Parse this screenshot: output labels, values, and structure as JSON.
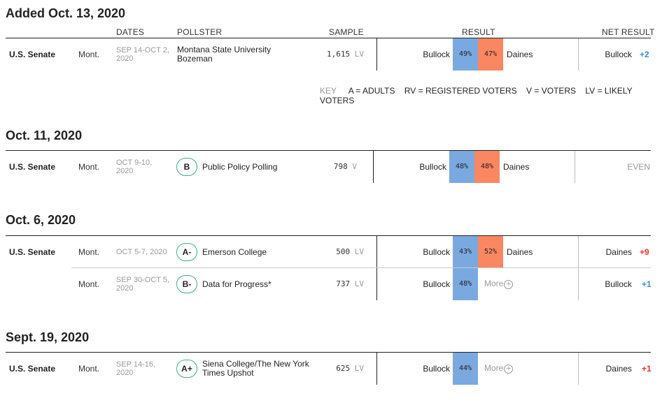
{
  "headers": {
    "dates": "DATES",
    "pollster": "POLLSTER",
    "sample": "SAMPLE",
    "result": "RESULT",
    "net_result": "NET RESULT"
  },
  "key": {
    "label": "KEY",
    "items": [
      "A = ADULTS",
      "RV = REGISTERED VOTERS",
      "V = VOTERS",
      "LV = LIKELY VOTERS"
    ]
  },
  "sections": [
    {
      "title": "Added Oct. 13, 2020",
      "rows": [
        {
          "office": "U.S. Senate",
          "state": "Mont.",
          "dates_line1": "SEP 14-OCT 2,",
          "dates_line2": "2020",
          "grade": "",
          "pollster_line1": "Montana State University",
          "pollster_line2": "Bozeman",
          "sample": "1,615",
          "sample_unit": "LV",
          "cand1": "Bullock",
          "pct1": "49%",
          "pct2": "47%",
          "cand2": "Daines",
          "net_name": "Bullock",
          "net_val": "+2"
        }
      ]
    },
    {
      "title": "Oct. 11, 2020",
      "rows": [
        {
          "office": "U.S. Senate",
          "state": "Mont.",
          "dates_line1": "OCT 9-10,",
          "dates_line2": "2020",
          "grade": "B",
          "pollster_line1": "Public Policy Polling",
          "sample": "798",
          "sample_unit": "V",
          "cand1": "Bullock",
          "pct1": "48%",
          "pct2": "48%",
          "cand2": "Daines",
          "net_even": "EVEN"
        }
      ]
    },
    {
      "title": "Oct. 6, 2020",
      "rows": [
        {
          "office": "U.S. Senate",
          "state": "Mont.",
          "dates_line1": "OCT 5-7, 2020",
          "grade": "A-",
          "pollster_line1": "Emerson College",
          "sample": "500",
          "sample_unit": "LV",
          "cand1": "Bullock",
          "pct1": "43%",
          "pct2": "52%",
          "cand2": "Daines",
          "net_name": "Daines",
          "net_val": "+9"
        },
        {
          "state": "Mont.",
          "dates_line1": "SEP 30-OCT 5,",
          "dates_line2": "2020",
          "grade": "B-",
          "pollster_line1": "Data for Progress*",
          "sample": "737",
          "sample_unit": "LV",
          "cand1": "Bullock",
          "pct1": "48%",
          "more": "More",
          "net_name": "Bullock",
          "net_val": "+1"
        }
      ]
    },
    {
      "title": "Sept. 19, 2020",
      "rows": [
        {
          "office": "U.S. Senate",
          "state": "Mont.",
          "dates_line1": "SEP 14-16,",
          "dates_line2": "2020",
          "grade": "A+",
          "pollster_line1": "Siena College/The New York",
          "pollster_line2": "Times Upshot",
          "sample": "625",
          "sample_unit": "LV",
          "cand1": "Bullock",
          "pct1": "44%",
          "more": "More",
          "net_name": "Daines",
          "net_val": "+1"
        }
      ]
    }
  ],
  "colors": {
    "dem": "#7aa9e0",
    "rep": "#fb8762",
    "dem_text": "#3b8fd6",
    "rep_text": "#ff2d22",
    "grade_border": "#3fb27f"
  }
}
